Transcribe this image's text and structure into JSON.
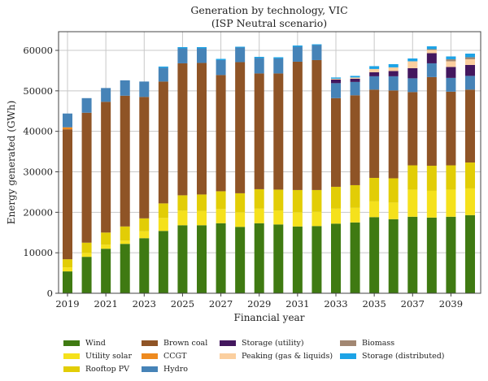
{
  "chart_data": {
    "type": "bar",
    "stacked": true,
    "title": "Generation by technology, VIC",
    "subtitle": "(ISP Neutral scenario)",
    "xlabel": "Financial year",
    "ylabel": "Energy generated (GWh)",
    "ylim": [
      0,
      65000
    ],
    "yticks": [
      0,
      10000,
      20000,
      30000,
      40000,
      50000,
      60000
    ],
    "ytick_labels": [
      "0",
      "10000",
      "20000",
      "30000",
      "40000",
      "50000",
      "60000"
    ],
    "xtick_labels": [
      "2019",
      "2021",
      "2023",
      "2025",
      "2027",
      "2029",
      "2031",
      "2033",
      "2035",
      "2037",
      "2039"
    ],
    "grid": true,
    "legend_position": "bottom",
    "categories": [
      "2019",
      "2020",
      "2021",
      "2022",
      "2023",
      "2024",
      "2025",
      "2026",
      "2027",
      "2028",
      "2029",
      "2030",
      "2031",
      "2032",
      "2033",
      "2034",
      "2035",
      "2036",
      "2037",
      "2038",
      "2039",
      "2040"
    ],
    "series": [
      {
        "name": "Wind",
        "color": "#3f7a12",
        "values": [
          5400,
          9000,
          11000,
          12200,
          13600,
          15400,
          16800,
          16800,
          17300,
          16400,
          17300,
          17000,
          16500,
          16600,
          17200,
          17500,
          18800,
          18300,
          18900,
          18700,
          18900,
          19300
        ]
      },
      {
        "name": "Utility solar",
        "color": "#f5e11c",
        "values": [
          1000,
          1000,
          1000,
          800,
          1700,
          3200,
          3600,
          3500,
          3500,
          3600,
          3600,
          3400,
          3500,
          3500,
          3700,
          3600,
          3900,
          4100,
          6700,
          6600,
          6700,
          6600
        ]
      },
      {
        "name": "Rooftop PV",
        "color": "#e2cd06",
        "values": [
          2000,
          2500,
          3000,
          3500,
          3200,
          3600,
          3800,
          4100,
          4400,
          4700,
          4800,
          5200,
          5500,
          5400,
          5400,
          5600,
          5800,
          6000,
          6000,
          6200,
          6000,
          6400
        ]
      },
      {
        "name": "Brown coal",
        "color": "#8f5426",
        "values": [
          32100,
          32100,
          32300,
          32300,
          30000,
          30100,
          32600,
          32500,
          28700,
          32400,
          28600,
          28700,
          31700,
          32100,
          21900,
          22200,
          21800,
          21700,
          18100,
          21900,
          18200,
          18000
        ]
      },
      {
        "name": "CCGT",
        "color": "#ee8a1f",
        "values": [
          500,
          0,
          0,
          0,
          0,
          0,
          0,
          0,
          0,
          0,
          0,
          0,
          0,
          0,
          0,
          0,
          0,
          0,
          0,
          0,
          0,
          0
        ]
      },
      {
        "name": "Hydro",
        "color": "#4683b7",
        "values": [
          3400,
          3600,
          3400,
          3800,
          3800,
          3400,
          3700,
          3600,
          3700,
          3600,
          3800,
          3700,
          3700,
          3700,
          3700,
          3300,
          3300,
          3500,
          3400,
          3400,
          3400,
          3400
        ]
      },
      {
        "name": "Storage (utility)",
        "color": "#43175e",
        "values": [
          0,
          0,
          0,
          0,
          0,
          0,
          0,
          0,
          0,
          0,
          0,
          0,
          0,
          0,
          900,
          800,
          1000,
          1300,
          2500,
          2500,
          2700,
          2700
        ]
      },
      {
        "name": "Peaking (gas & liquids)",
        "color": "#fbcf9f",
        "values": [
          0,
          0,
          0,
          0,
          0,
          0,
          0,
          0,
          0,
          0,
          0,
          0,
          0,
          0,
          200,
          300,
          800,
          900,
          1700,
          800,
          1400,
          1400
        ]
      },
      {
        "name": "Biomass",
        "color": "#a28772",
        "values": [
          0,
          0,
          0,
          0,
          0,
          0,
          0,
          0,
          0,
          0,
          0,
          0,
          0,
          0,
          0,
          0,
          0,
          0,
          0,
          200,
          500,
          500
        ]
      },
      {
        "name": "Storage (distributed)",
        "color": "#1da3e6",
        "values": [
          0,
          0,
          0,
          0,
          0,
          300,
          300,
          300,
          300,
          200,
          300,
          300,
          300,
          200,
          300,
          400,
          700,
          800,
          700,
          700,
          700,
          900
        ]
      }
    ]
  },
  "legend": {
    "items": [
      {
        "label": "Wind",
        "color": "#3f7a12"
      },
      {
        "label": "Brown coal",
        "color": "#8f5426"
      },
      {
        "label": "Storage (utility)",
        "color": "#43175e"
      },
      {
        "label": "Biomass",
        "color": "#a28772"
      },
      {
        "label": "Utility solar",
        "color": "#f5e11c"
      },
      {
        "label": "CCGT",
        "color": "#ee8a1f"
      },
      {
        "label": "Peaking (gas & liquids)",
        "color": "#fbcf9f"
      },
      {
        "label": "Storage (distributed)",
        "color": "#1da3e6"
      },
      {
        "label": "Rooftop PV",
        "color": "#e2cd06"
      },
      {
        "label": "Hydro",
        "color": "#4683b7"
      }
    ]
  }
}
